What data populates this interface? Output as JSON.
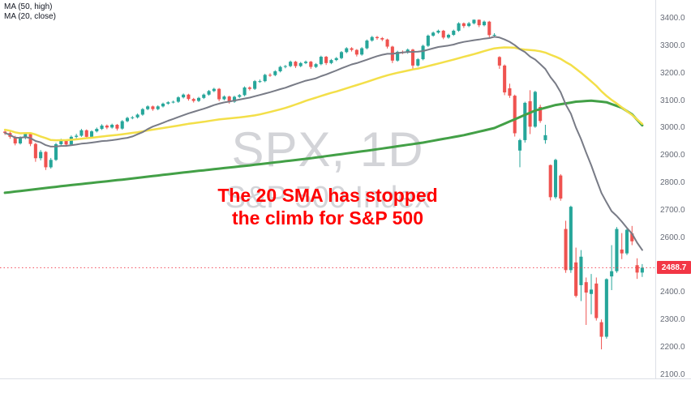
{
  "legend": {
    "items": [
      {
        "label": "MA (50, high)"
      },
      {
        "label": "MA (20, close)"
      }
    ]
  },
  "watermark": {
    "line1": "SPX, 1D",
    "line2": "S&P 500 Index"
  },
  "annotation": {
    "line1": "The 20 SMA has stopped",
    "line2": "the climb for S&P 500",
    "color": "#ff0000"
  },
  "price_axis": {
    "ticks": [
      "3400.0",
      "3300.0",
      "3200.0",
      "3100.0",
      "3000.0",
      "2900.0",
      "2800.0",
      "2700.0",
      "2600.0",
      "2500.0",
      "2400.0",
      "2300.0",
      "2200.0",
      "2100.0"
    ],
    "last_price": 2488.7,
    "last_price_label": "2488.7",
    "tag_color": "#f23645",
    "dashed_line_color": "#f23645"
  },
  "chart_data": {
    "type": "candlestick",
    "title": "SPX, 1D — S&P 500 Index",
    "interval": "1D",
    "symbol": "SPX",
    "ylim": [
      2085,
      3465
    ],
    "yticks": [
      2100,
      2200,
      2300,
      2400,
      2500,
      2600,
      2700,
      2800,
      2900,
      3000,
      3100,
      3200,
      3300,
      3400
    ],
    "colors": {
      "up": "#26a69a",
      "down": "#ef5350"
    },
    "candles": [
      [
        2985,
        2992,
        2973,
        2980
      ],
      [
        2980,
        2985,
        2959,
        2966
      ],
      [
        2966,
        2970,
        2935,
        2942
      ],
      [
        2942,
        2968,
        2938,
        2962
      ],
      [
        2962,
        2983,
        2957,
        2977
      ],
      [
        2977,
        2980,
        2932,
        2940
      ],
      [
        2940,
        2944,
        2875,
        2888
      ],
      [
        2888,
        2918,
        2880,
        2911
      ],
      [
        2911,
        2914,
        2845,
        2855
      ],
      [
        2855,
        2889,
        2850,
        2882
      ],
      [
        2882,
        2944,
        2878,
        2939
      ],
      [
        2939,
        2959,
        2933,
        2952
      ],
      [
        2952,
        2956,
        2930,
        2938
      ],
      [
        2938,
        2971,
        2934,
        2966
      ],
      [
        2966,
        2977,
        2960,
        2970
      ],
      [
        2970,
        2995,
        2966,
        2990
      ],
      [
        2990,
        2993,
        2959,
        2966
      ],
      [
        2966,
        2990,
        2961,
        2986
      ],
      [
        2986,
        3000,
        2982,
        2995
      ],
      [
        2995,
        3012,
        2991,
        3007
      ],
      [
        3007,
        3011,
        2994,
        3000
      ],
      [
        3000,
        3014,
        2996,
        3010
      ],
      [
        3010,
        3013,
        2989,
        2996
      ],
      [
        2996,
        3027,
        2992,
        3023
      ],
      [
        3023,
        3039,
        3019,
        3035
      ],
      [
        3035,
        3042,
        3030,
        3037
      ],
      [
        3037,
        3051,
        3033,
        3047
      ],
      [
        3047,
        3071,
        3043,
        3067
      ],
      [
        3067,
        3081,
        3063,
        3077
      ],
      [
        3077,
        3080,
        3061,
        3067
      ],
      [
        3067,
        3081,
        3063,
        3077
      ],
      [
        3077,
        3091,
        3073,
        3087
      ],
      [
        3087,
        3096,
        3083,
        3092
      ],
      [
        3092,
        3098,
        3088,
        3094
      ],
      [
        3094,
        3114,
        3090,
        3110
      ],
      [
        3110,
        3124,
        3106,
        3120
      ],
      [
        3120,
        3123,
        3098,
        3104
      ],
      [
        3104,
        3108,
        3091,
        3097
      ],
      [
        3097,
        3112,
        3093,
        3108
      ],
      [
        3108,
        3124,
        3104,
        3120
      ],
      [
        3120,
        3137,
        3116,
        3133
      ],
      [
        3133,
        3145,
        3129,
        3141
      ],
      [
        3141,
        3144,
        3096,
        3103
      ],
      [
        3103,
        3117,
        3099,
        3113
      ],
      [
        3113,
        3116,
        3087,
        3094
      ],
      [
        3094,
        3116,
        3090,
        3112
      ],
      [
        3112,
        3122,
        3108,
        3118
      ],
      [
        3118,
        3150,
        3114,
        3146
      ],
      [
        3146,
        3150,
        3135,
        3141
      ],
      [
        3141,
        3173,
        3137,
        3169
      ],
      [
        3169,
        3175,
        3163,
        3169
      ],
      [
        3169,
        3196,
        3165,
        3192
      ],
      [
        3192,
        3198,
        3185,
        3191
      ],
      [
        3191,
        3209,
        3187,
        3205
      ],
      [
        3205,
        3225,
        3201,
        3221
      ],
      [
        3221,
        3228,
        3216,
        3224
      ],
      [
        3224,
        3244,
        3220,
        3240
      ],
      [
        3240,
        3243,
        3217,
        3224
      ],
      [
        3224,
        3239,
        3220,
        3235
      ],
      [
        3235,
        3244,
        3231,
        3240
      ],
      [
        3240,
        3243,
        3214,
        3221
      ],
      [
        3221,
        3235,
        3217,
        3231
      ],
      [
        3231,
        3262,
        3227,
        3258
      ],
      [
        3258,
        3261,
        3228,
        3235
      ],
      [
        3235,
        3250,
        3231,
        3246
      ],
      [
        3246,
        3257,
        3242,
        3253
      ],
      [
        3253,
        3279,
        3249,
        3275
      ],
      [
        3275,
        3293,
        3271,
        3289
      ],
      [
        3289,
        3293,
        3277,
        3283
      ],
      [
        3283,
        3286,
        3259,
        3266
      ],
      [
        3266,
        3293,
        3262,
        3289
      ],
      [
        3289,
        3321,
        3285,
        3317
      ],
      [
        3317,
        3334,
        3313,
        3330
      ],
      [
        3330,
        3334,
        3320,
        3326
      ],
      [
        3326,
        3330,
        3315,
        3321
      ],
      [
        3321,
        3324,
        3288,
        3295
      ],
      [
        3295,
        3298,
        3235,
        3244
      ],
      [
        3244,
        3280,
        3240,
        3276
      ],
      [
        3276,
        3281,
        3268,
        3273
      ],
      [
        3273,
        3288,
        3269,
        3284
      ],
      [
        3284,
        3287,
        3215,
        3226
      ],
      [
        3226,
        3253,
        3222,
        3249
      ],
      [
        3249,
        3302,
        3245,
        3298
      ],
      [
        3298,
        3339,
        3294,
        3335
      ],
      [
        3335,
        3350,
        3331,
        3346
      ],
      [
        3346,
        3357,
        3342,
        3353
      ],
      [
        3353,
        3356,
        3322,
        3328
      ],
      [
        3328,
        3342,
        3324,
        3338
      ],
      [
        3338,
        3357,
        3334,
        3353
      ],
      [
        3353,
        3384,
        3349,
        3380
      ],
      [
        3380,
        3383,
        3363,
        3370
      ],
      [
        3370,
        3385,
        3366,
        3380
      ],
      [
        3380,
        3394,
        3376,
        3393
      ],
      [
        3393,
        3394,
        3366,
        3373
      ],
      [
        3373,
        3390,
        3369,
        3386
      ],
      [
        3386,
        3389,
        3329,
        3337
      ],
      [
        3337,
        3344,
        3331,
        3338
      ],
      [
        3257,
        3260,
        3214,
        3226
      ],
      [
        3226,
        3230,
        3118,
        3128
      ],
      [
        3143,
        3160,
        3108,
        3116
      ],
      [
        3116,
        3120,
        2967,
        2979
      ],
      [
        2916,
        2959,
        2855,
        2954
      ],
      [
        2954,
        3094,
        2945,
        3090
      ],
      [
        3096,
        3136,
        2976,
        3003
      ],
      [
        3003,
        3134,
        2999,
        3130
      ],
      [
        3075,
        3083,
        3017,
        3024
      ],
      [
        2954,
        3010,
        2941,
        2972
      ],
      [
        2863,
        2865,
        2734,
        2746
      ],
      [
        2746,
        2886,
        2740,
        2882
      ],
      [
        2825,
        2830,
        2733,
        2741
      ],
      [
        2630,
        2660,
        2470,
        2480
      ],
      [
        2480,
        2715,
        2470,
        2711
      ],
      [
        2508,
        2562,
        2380,
        2386
      ],
      [
        2425,
        2553,
        2367,
        2529
      ],
      [
        2436,
        2453,
        2280,
        2398
      ],
      [
        2393,
        2466,
        2319,
        2409
      ],
      [
        2431,
        2453,
        2296,
        2305
      ],
      [
        2290,
        2300,
        2191,
        2237
      ],
      [
        2237,
        2450,
        2230,
        2447
      ],
      [
        2457,
        2571,
        2407,
        2476
      ],
      [
        2476,
        2637,
        2470,
        2630
      ],
      [
        2555,
        2615,
        2520,
        2541
      ],
      [
        2541,
        2631,
        2535,
        2627
      ],
      [
        2614,
        2641,
        2571,
        2585
      ],
      [
        2498,
        2523,
        2448,
        2471
      ],
      [
        2471,
        2502,
        2455,
        2488.7
      ]
    ],
    "overlays": [
      {
        "name": "MA slow (200)",
        "type": "points",
        "color": "#43a047",
        "width": 3,
        "points": [
          [
            0,
            2762
          ],
          [
            12,
            2788
          ],
          [
            24,
            2812
          ],
          [
            36,
            2838
          ],
          [
            48,
            2862
          ],
          [
            60,
            2888
          ],
          [
            72,
            2918
          ],
          [
            82,
            2945
          ],
          [
            90,
            2972
          ],
          [
            96,
            2998
          ],
          [
            100,
            3030
          ],
          [
            104,
            3062
          ],
          [
            108,
            3082
          ],
          [
            112,
            3094
          ],
          [
            115,
            3098
          ],
          [
            118,
            3092
          ],
          [
            121,
            3072
          ],
          [
            123,
            3048
          ],
          [
            125,
            3008
          ]
        ]
      },
      {
        "name": "MA (50, high)",
        "type": "sma",
        "period": 50,
        "source": "high",
        "color": "#f3df49",
        "width": 2.5
      },
      {
        "name": "MA (20, close)",
        "type": "sma",
        "period": 20,
        "source": "close",
        "color": "#787b86",
        "width": 2
      }
    ]
  }
}
